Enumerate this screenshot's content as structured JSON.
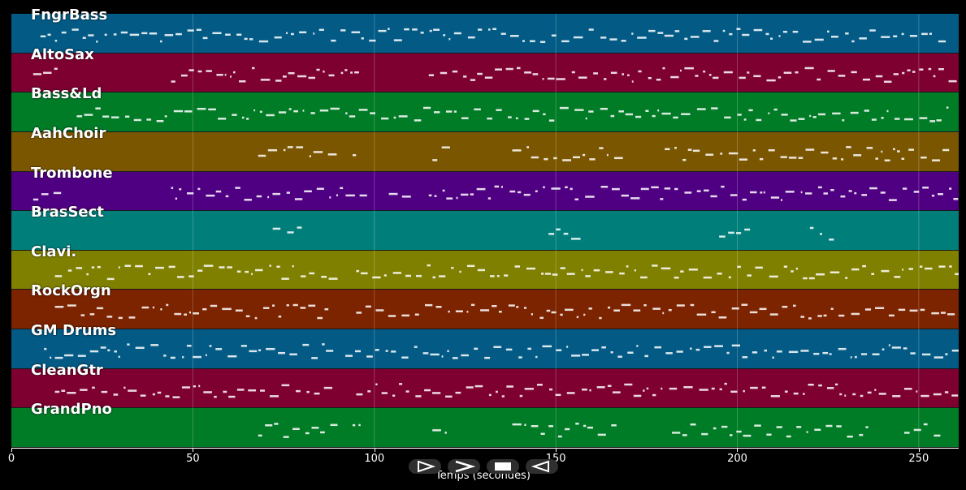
{
  "tracks": [
    {
      "name": "FngrBass",
      "color": "#025a85"
    },
    {
      "name": "AltoSax",
      "color": "#7d0030"
    },
    {
      "name": "Bass&Ld",
      "color": "#007b26"
    },
    {
      "name": "AahChoir",
      "color": "#7b5600"
    },
    {
      "name": "Trombone",
      "color": "#4f0082"
    },
    {
      "name": "BrasSect",
      "color": "#007f7a"
    },
    {
      "name": "Clavi.",
      "color": "#7f8000"
    },
    {
      "name": "RockOrgn",
      "color": "#7c2300"
    },
    {
      "name": "GM Drums",
      "color": "#025a85"
    },
    {
      "name": "CleanGtr",
      "color": "#7d0030"
    },
    {
      "name": "GrandPno",
      "color": "#007b26"
    }
  ],
  "axis": {
    "xlabel": "Temps (secondes)",
    "xlim": [
      0,
      261
    ],
    "ticks": [
      "0",
      "50",
      "100",
      "150",
      "200",
      "250"
    ],
    "tick_values": [
      0,
      50,
      100,
      150,
      200,
      250
    ]
  },
  "controls": [
    {
      "name": "play-from-start-button",
      "icon": "play-outline-icon"
    },
    {
      "name": "play-button",
      "icon": "play-icon"
    },
    {
      "name": "stop-button",
      "icon": "stop-icon"
    },
    {
      "name": "rewind-button",
      "icon": "rewind-icon"
    }
  ]
}
